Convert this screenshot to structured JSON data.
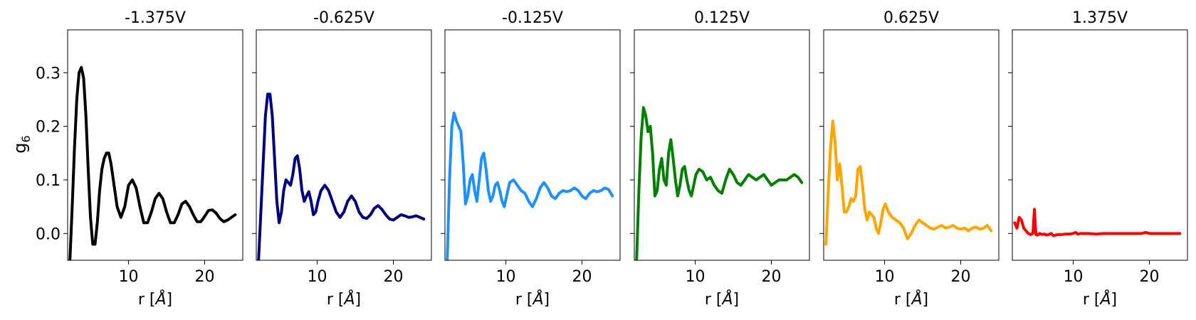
{
  "chart_data": {
    "type": "line",
    "ylabel": "g",
    "ylabel_sub": "6",
    "xlabel_main": "r [",
    "xlabel_unit": "Å",
    "xlabel_close": "]",
    "xlim": [
      2,
      25
    ],
    "ylim": [
      -0.05,
      0.38
    ],
    "xticks": [
      10,
      20
    ],
    "yticks": [
      0.0,
      0.1,
      0.2,
      0.3
    ],
    "ytick_labels": [
      "0.0",
      "0.1",
      "0.2",
      "0.3"
    ],
    "xtick_labels": [
      "10",
      "20"
    ],
    "panels": [
      {
        "title": "-1.375V",
        "color": "#000000",
        "x": [
          2.3,
          2.6,
          2.9,
          3.2,
          3.5,
          3.8,
          4.1,
          4.4,
          4.7,
          5.0,
          5.3,
          5.6,
          5.9,
          6.2,
          6.5,
          6.8,
          7.1,
          7.4,
          7.7,
          8.0,
          8.5,
          9.0,
          9.5,
          10.0,
          10.5,
          11.0,
          11.5,
          12.0,
          12.5,
          13.0,
          13.5,
          14.0,
          14.5,
          15.0,
          15.5,
          16.0,
          16.5,
          17.0,
          17.5,
          18.0,
          18.5,
          19.0,
          19.5,
          20.0,
          20.5,
          21.0,
          21.5,
          22.0,
          22.5,
          23.0,
          23.5,
          24.0
        ],
        "y": [
          -0.05,
          0.05,
          0.16,
          0.25,
          0.3,
          0.31,
          0.29,
          0.22,
          0.12,
          0.03,
          -0.02,
          -0.02,
          0.02,
          0.08,
          0.12,
          0.14,
          0.15,
          0.15,
          0.13,
          0.1,
          0.05,
          0.03,
          0.05,
          0.09,
          0.1,
          0.085,
          0.05,
          0.02,
          0.02,
          0.04,
          0.065,
          0.075,
          0.065,
          0.04,
          0.02,
          0.02,
          0.035,
          0.055,
          0.06,
          0.05,
          0.035,
          0.022,
          0.022,
          0.032,
          0.043,
          0.044,
          0.038,
          0.028,
          0.022,
          0.025,
          0.03,
          0.035
        ]
      },
      {
        "title": "-0.625V",
        "color": "#00007f",
        "x": [
          2.3,
          2.6,
          2.9,
          3.2,
          3.5,
          3.8,
          4.1,
          4.4,
          4.7,
          5.0,
          5.3,
          5.6,
          5.9,
          6.2,
          6.5,
          6.8,
          7.1,
          7.4,
          7.7,
          8.0,
          8.3,
          8.6,
          8.9,
          9.2,
          9.5,
          9.8,
          10.1,
          10.5,
          11.0,
          11.5,
          12.0,
          12.5,
          13.0,
          13.5,
          14.0,
          14.5,
          15.0,
          15.5,
          16.0,
          16.5,
          17.0,
          17.5,
          18.0,
          18.5,
          19.0,
          19.5,
          20.0,
          20.5,
          21.0,
          21.5,
          22.0,
          22.5,
          23.0,
          23.5,
          24.0
        ],
        "y": [
          -0.05,
          0.04,
          0.13,
          0.22,
          0.26,
          0.26,
          0.22,
          0.14,
          0.06,
          0.02,
          0.04,
          0.08,
          0.1,
          0.095,
          0.09,
          0.11,
          0.14,
          0.145,
          0.12,
          0.08,
          0.06,
          0.07,
          0.078,
          0.06,
          0.035,
          0.04,
          0.06,
          0.08,
          0.09,
          0.08,
          0.06,
          0.04,
          0.03,
          0.04,
          0.06,
          0.07,
          0.06,
          0.04,
          0.03,
          0.028,
          0.035,
          0.047,
          0.052,
          0.045,
          0.035,
          0.027,
          0.025,
          0.03,
          0.035,
          0.033,
          0.03,
          0.031,
          0.033,
          0.03,
          0.027
        ]
      },
      {
        "title": "-0.125V",
        "color": "#1e8fff",
        "x": [
          2.3,
          2.6,
          2.9,
          3.2,
          3.5,
          3.8,
          4.1,
          4.4,
          4.7,
          5.0,
          5.3,
          5.6,
          5.9,
          6.2,
          6.5,
          6.8,
          7.1,
          7.4,
          7.7,
          8.0,
          8.3,
          8.6,
          8.9,
          9.2,
          9.5,
          9.8,
          10.1,
          10.5,
          11.0,
          11.5,
          12.0,
          12.5,
          13.0,
          13.5,
          14.0,
          14.5,
          15.0,
          15.5,
          16.0,
          16.5,
          17.0,
          17.5,
          18.0,
          18.5,
          19.0,
          19.5,
          20.0,
          20.5,
          21.0,
          21.5,
          22.0,
          22.5,
          23.0,
          23.5,
          24.0
        ],
        "y": [
          -0.05,
          0.1,
          0.2,
          0.225,
          0.21,
          0.2,
          0.19,
          0.13,
          0.055,
          0.07,
          0.1,
          0.11,
          0.08,
          0.06,
          0.1,
          0.14,
          0.15,
          0.12,
          0.08,
          0.06,
          0.07,
          0.09,
          0.095,
          0.08,
          0.06,
          0.05,
          0.07,
          0.095,
          0.1,
          0.09,
          0.08,
          0.075,
          0.06,
          0.05,
          0.065,
          0.085,
          0.095,
          0.085,
          0.07,
          0.065,
          0.075,
          0.08,
          0.078,
          0.08,
          0.085,
          0.08,
          0.07,
          0.065,
          0.075,
          0.08,
          0.078,
          0.08,
          0.085,
          0.082,
          0.07
        ]
      },
      {
        "title": "0.125V",
        "color": "#007f00",
        "x": [
          2.3,
          2.6,
          2.9,
          3.2,
          3.5,
          3.8,
          4.1,
          4.4,
          4.7,
          5.0,
          5.3,
          5.6,
          5.9,
          6.2,
          6.5,
          6.8,
          7.1,
          7.4,
          7.7,
          8.0,
          8.3,
          8.6,
          8.9,
          9.2,
          9.5,
          9.8,
          10.1,
          10.5,
          11.0,
          11.5,
          12.0,
          12.5,
          13.0,
          13.5,
          14.0,
          14.5,
          15.0,
          15.5,
          16.0,
          16.5,
          17.0,
          17.5,
          18.0,
          18.5,
          19.0,
          19.5,
          20.0,
          20.5,
          21.0,
          21.5,
          22.0,
          22.5,
          23.0,
          23.5,
          24.0
        ],
        "y": [
          -0.05,
          0.08,
          0.18,
          0.235,
          0.22,
          0.19,
          0.2,
          0.15,
          0.07,
          0.08,
          0.12,
          0.14,
          0.1,
          0.09,
          0.15,
          0.175,
          0.14,
          0.1,
          0.07,
          0.09,
          0.12,
          0.125,
          0.1,
          0.08,
          0.07,
          0.09,
          0.11,
          0.12,
          0.115,
          0.1,
          0.105,
          0.09,
          0.08,
          0.075,
          0.1,
          0.12,
          0.11,
          0.095,
          0.09,
          0.1,
          0.11,
          0.105,
          0.1,
          0.105,
          0.11,
          0.1,
          0.09,
          0.095,
          0.1,
          0.1,
          0.1,
          0.105,
          0.11,
          0.105,
          0.095
        ]
      },
      {
        "title": "0.625V",
        "color": "#ffa500",
        "x": [
          2.3,
          2.6,
          2.9,
          3.2,
          3.5,
          3.8,
          4.1,
          4.4,
          4.7,
          5.0,
          5.3,
          5.6,
          5.9,
          6.2,
          6.5,
          6.8,
          7.1,
          7.4,
          7.7,
          8.0,
          8.3,
          8.6,
          8.9,
          9.2,
          9.5,
          9.8,
          10.1,
          10.5,
          11.0,
          11.5,
          12.0,
          12.5,
          13.0,
          13.5,
          14.0,
          14.5,
          15.0,
          15.5,
          16.0,
          16.5,
          17.0,
          17.5,
          18.0,
          18.5,
          19.0,
          19.5,
          20.0,
          20.5,
          21.0,
          21.5,
          22.0,
          22.5,
          23.0,
          23.5,
          24.0
        ],
        "y": [
          -0.02,
          0.08,
          0.16,
          0.21,
          0.17,
          0.1,
          0.13,
          0.09,
          0.04,
          0.04,
          0.05,
          0.065,
          0.06,
          0.07,
          0.12,
          0.125,
          0.09,
          0.045,
          0.025,
          0.04,
          0.035,
          0.03,
          0.01,
          0.0,
          0.02,
          0.045,
          0.055,
          0.04,
          0.03,
          0.025,
          0.02,
          0.01,
          -0.01,
          0.0,
          0.015,
          0.025,
          0.02,
          0.015,
          0.01,
          0.008,
          0.012,
          0.015,
          0.01,
          0.012,
          0.015,
          0.01,
          0.008,
          0.01,
          0.005,
          0.01,
          0.012,
          0.008,
          0.01,
          0.015,
          0.005
        ]
      },
      {
        "title": "1.375V",
        "color": "#ff0000",
        "x": [
          2.3,
          2.6,
          2.9,
          3.2,
          3.5,
          3.8,
          4.1,
          4.4,
          4.7,
          4.9,
          5.0,
          5.1,
          5.3,
          5.6,
          5.9,
          6.2,
          6.5,
          6.8,
          7.1,
          7.4,
          7.7,
          8.0,
          8.5,
          9.0,
          9.5,
          10.0,
          10.3,
          10.6,
          11.0,
          12.0,
          13.0,
          14.0,
          15.0,
          16.0,
          17.0,
          18.0,
          19.0,
          19.5,
          20.0,
          21.0,
          22.0,
          23.0,
          24.0
        ],
        "y": [
          0.02,
          0.01,
          0.03,
          0.025,
          0.01,
          0.005,
          0.0,
          -0.002,
          0.0,
          0.045,
          0.02,
          -0.002,
          -0.003,
          0.0,
          -0.002,
          -0.001,
          -0.003,
          -0.002,
          0.0,
          -0.004,
          -0.003,
          -0.002,
          -0.002,
          -0.001,
          -0.001,
          0.0,
          0.002,
          -0.001,
          0.0,
          0.0,
          -0.001,
          0.0,
          0.0,
          0.0,
          0.0,
          0.0,
          0.0,
          0.002,
          0.0,
          0.0,
          0.0,
          0.0,
          0.0
        ]
      }
    ]
  }
}
